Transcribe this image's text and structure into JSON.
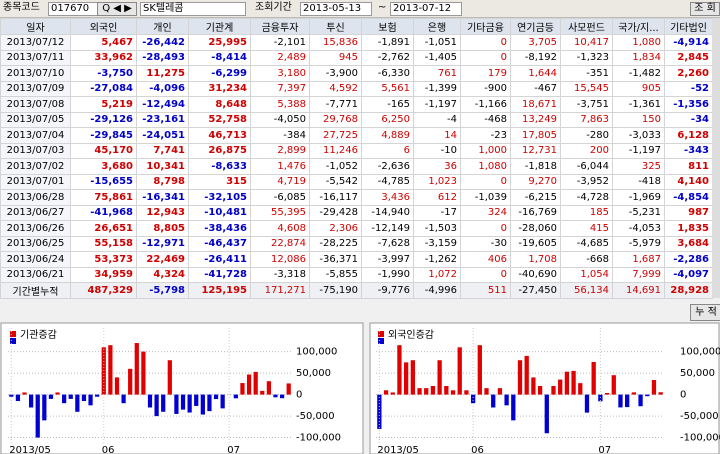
{
  "toolbar": {
    "code_label": "종목코드",
    "code": "017670",
    "name": "SK텔레콤",
    "period_label": "조회기간",
    "from": "2013-05-13",
    "tilde": "~",
    "to": "2013-07-12",
    "query": "조 회"
  },
  "table": {
    "columns": [
      "일자",
      "외국인",
      "개인",
      "기관계",
      "금융투자",
      "투신",
      "보험",
      "은행",
      "기타금융",
      "연기금등",
      "사모펀드",
      "국가/지...",
      "기타법인"
    ],
    "rows": [
      [
        "2013/07/12",
        "5,467",
        "-26,442",
        "25,995",
        "-2,101",
        "15,836",
        "-1,891",
        "-1,051",
        "0",
        "3,705",
        "10,417",
        "1,080",
        "-4,914"
      ],
      [
        "2013/07/11",
        "33,962",
        "-28,493",
        "-8,414",
        "2,489",
        "945",
        "-2,762",
        "-1,405",
        "0",
        "-8,192",
        "-1,323",
        "1,834",
        "2,845"
      ],
      [
        "2013/07/10",
        "-3,750",
        "11,275",
        "-6,299",
        "3,180",
        "-3,900",
        "-6,330",
        "761",
        "179",
        "1,644",
        "-351",
        "-1,482",
        "2,260"
      ],
      [
        "2013/07/09",
        "-27,084",
        "-4,096",
        "31,234",
        "7,397",
        "4,592",
        "5,561",
        "-1,399",
        "-900",
        "-467",
        "15,545",
        "905",
        "-52"
      ],
      [
        "2013/07/08",
        "5,219",
        "-12,494",
        "8,648",
        "5,388",
        "-7,771",
        "-165",
        "-1,197",
        "-1,166",
        "18,671",
        "-3,751",
        "-1,361",
        "-1,356"
      ],
      [
        "2013/07/05",
        "-29,126",
        "-23,161",
        "52,758",
        "-4,050",
        "29,768",
        "6,250",
        "-4",
        "-468",
        "13,249",
        "7,863",
        "150",
        "-34"
      ],
      [
        "2013/07/04",
        "-29,845",
        "-24,051",
        "46,713",
        "-384",
        "27,725",
        "4,889",
        "14",
        "-23",
        "17,805",
        "-280",
        "-3,033",
        "6,128"
      ],
      [
        "2013/07/03",
        "45,170",
        "7,741",
        "26,875",
        "2,899",
        "11,246",
        "6",
        "-10",
        "1,000",
        "12,731",
        "200",
        "-1,197",
        "-343"
      ],
      [
        "2013/07/02",
        "3,680",
        "10,341",
        "-8,633",
        "1,476",
        "-1,052",
        "-2,636",
        "36",
        "1,080",
        "-1,818",
        "-6,044",
        "325",
        "811"
      ],
      [
        "2013/07/01",
        "-15,655",
        "8,798",
        "315",
        "4,719",
        "-5,542",
        "-4,785",
        "1,023",
        "0",
        "9,270",
        "-3,952",
        "-418",
        "4,140"
      ],
      [
        "2013/06/28",
        "75,861",
        "-16,341",
        "-32,105",
        "-6,085",
        "-16,117",
        "3,436",
        "612",
        "-1,039",
        "-6,215",
        "-4,728",
        "-1,969",
        "-4,854"
      ],
      [
        "2013/06/27",
        "-41,968",
        "12,943",
        "-10,481",
        "55,395",
        "-29,428",
        "-14,940",
        "-17",
        "324",
        "-16,769",
        "185",
        "-5,231",
        "987"
      ],
      [
        "2013/06/26",
        "26,651",
        "8,805",
        "-38,436",
        "4,608",
        "2,306",
        "-12,149",
        "-1,503",
        "0",
        "-28,060",
        "415",
        "-4,053",
        "1,835"
      ],
      [
        "2013/06/25",
        "55,158",
        "-12,971",
        "-46,437",
        "22,874",
        "-28,225",
        "-7,628",
        "-3,159",
        "-30",
        "-19,605",
        "-4,685",
        "-5,979",
        "3,684"
      ],
      [
        "2013/06/24",
        "53,373",
        "22,469",
        "-26,411",
        "12,086",
        "-36,371",
        "-3,997",
        "-1,262",
        "406",
        "1,708",
        "-668",
        "1,687",
        "-2,286"
      ],
      [
        "2013/06/21",
        "34,959",
        "4,324",
        "-41,728",
        "-3,318",
        "-5,855",
        "-1,990",
        "1,072",
        "0",
        "-40,690",
        "1,054",
        "7,999",
        "-4,097"
      ]
    ],
    "total": [
      "기간별누적",
      "487,329",
      "-5,798",
      "125,195",
      "171,271",
      "-75,190",
      "-9,776",
      "-4,996",
      "511",
      "-27,450",
      "56,134",
      "14,691",
      "28,928"
    ]
  },
  "cumulative_button": "누 적",
  "chart_data": [
    {
      "type": "bar",
      "title": "기관증감",
      "positive_color": "#e00000",
      "negative_color": "#0000d0",
      "categories": [
        "2013/05",
        null,
        null,
        null,
        null,
        null,
        null,
        null,
        null,
        null,
        null,
        null,
        null,
        null,
        "06",
        null,
        null,
        null,
        null,
        null,
        null,
        null,
        null,
        null,
        null,
        null,
        null,
        null,
        null,
        null,
        null,
        null,
        null,
        "07",
        null,
        null,
        null,
        null,
        null,
        null,
        null,
        null,
        null
      ],
      "values": [
        -5000,
        -15000,
        5000,
        -30000,
        -100000,
        -60000,
        -10000,
        5000,
        -20000,
        -10000,
        -40000,
        -15000,
        -25000,
        -5000,
        110000,
        115000,
        40000,
        -20000,
        60000,
        120000,
        100000,
        -30000,
        -50000,
        -40000,
        80000,
        -45000,
        -35000,
        -41728,
        -26411,
        -46437,
        -38436,
        -10481,
        -32105,
        315,
        -8633,
        26875,
        46713,
        52758,
        8648,
        31234,
        -6299,
        -8414,
        25995
      ],
      "ylim": [
        -115000,
        155000
      ],
      "yticks": [
        {
          "value": -100000,
          "label": "-100,000"
        },
        {
          "value": -50000,
          "label": "-50,000"
        },
        0,
        {
          "value": 50000,
          "label": "50,000"
        },
        {
          "value": 100000,
          "label": "100,000"
        }
      ]
    },
    {
      "type": "bar",
      "title": "외국인증감",
      "positive_color": "#e00000",
      "negative_color": "#0000d0",
      "categories": [
        "2013/05",
        null,
        null,
        null,
        null,
        null,
        null,
        null,
        null,
        null,
        null,
        null,
        null,
        null,
        "06",
        null,
        null,
        null,
        null,
        null,
        null,
        null,
        null,
        null,
        null,
        null,
        null,
        null,
        null,
        null,
        null,
        null,
        null,
        "07",
        null,
        null,
        null,
        null,
        null,
        null,
        null,
        null,
        null
      ],
      "values": [
        -80000,
        10000,
        5000,
        115000,
        75000,
        80000,
        15000,
        15000,
        20000,
        80000,
        20000,
        10000,
        110000,
        10000,
        -20000,
        115000,
        15000,
        -30000,
        15000,
        -25000,
        -60000,
        80000,
        90000,
        40000,
        20000,
        -90000,
        20000,
        34959,
        53373,
        55158,
        26651,
        -41968,
        75861,
        -15655,
        3680,
        45170,
        -29845,
        -29126,
        5219,
        -27084,
        -3750,
        33962,
        5467
      ],
      "ylim": [
        -115000,
        155000
      ],
      "yticks": [
        {
          "value": -100000,
          "label": "-100,000"
        },
        {
          "value": -50000,
          "label": "-50,000"
        },
        0,
        {
          "value": 50000,
          "label": "50,000"
        },
        {
          "value": 100000,
          "label": "100,000"
        }
      ]
    }
  ]
}
